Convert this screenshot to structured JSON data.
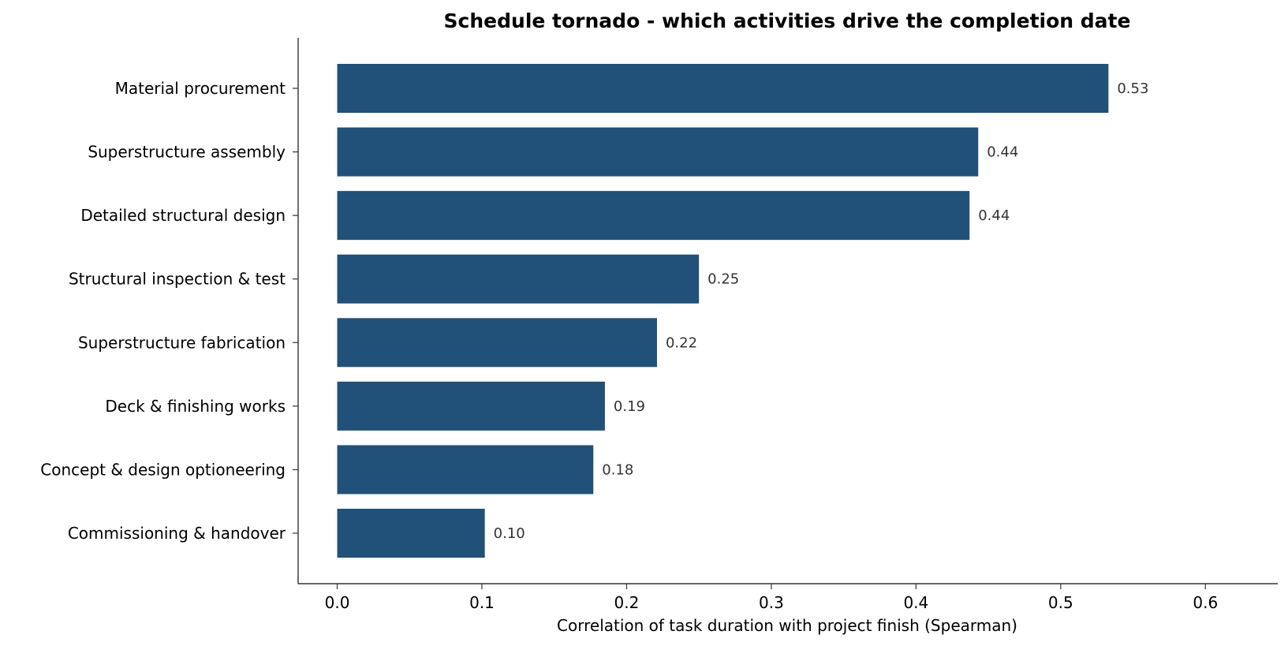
{
  "chart_data": {
    "type": "bar",
    "orientation": "horizontal",
    "title": "Schedule tornado - which activities drive the completion date",
    "xlabel": "Correlation of task duration with project finish (Spearman)",
    "ylabel": "",
    "categories": [
      "Material procurement",
      "Superstructure assembly",
      "Detailed structural design",
      "Structural inspection & test",
      "Superstructure fabrication",
      "Deck & finishing works",
      "Concept & design optioneering",
      "Commissioning & handover"
    ],
    "values": [
      0.533,
      0.443,
      0.437,
      0.25,
      0.221,
      0.185,
      0.177,
      0.102
    ],
    "value_labels": [
      "0.53",
      "0.44",
      "0.44",
      "0.25",
      "0.22",
      "0.19",
      "0.18",
      "0.10"
    ],
    "xlim": [
      -0.027,
      0.65
    ],
    "xticks": [
      0.0,
      0.1,
      0.2,
      0.3,
      0.4,
      0.5,
      0.6
    ],
    "xtick_labels": [
      "0.0",
      "0.1",
      "0.2",
      "0.3",
      "0.4",
      "0.5",
      "0.6"
    ],
    "bar_color": "#215078",
    "grid": false,
    "legend": "none"
  }
}
